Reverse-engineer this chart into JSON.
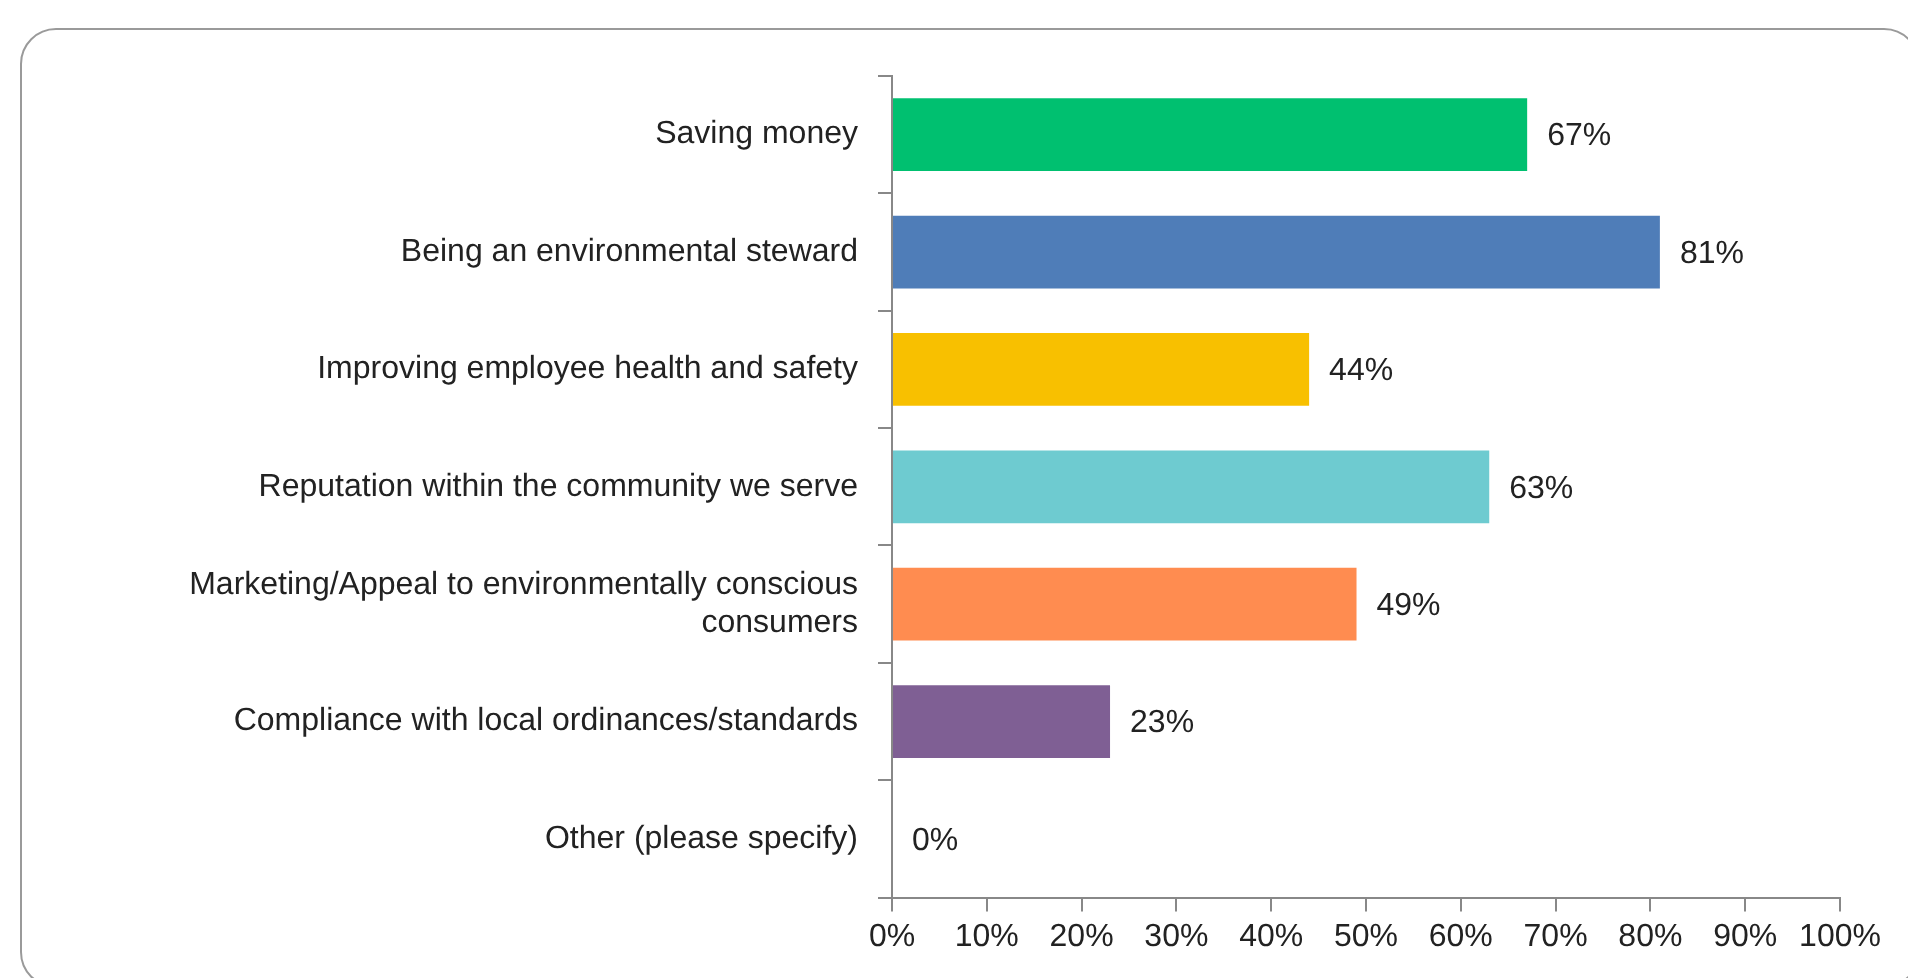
{
  "chart_data": {
    "type": "bar",
    "orientation": "horizontal",
    "categories": [
      "Saving money",
      "Being an environmental steward",
      "Improving employee health and safety",
      "Reputation within the community we serve",
      "Marketing/Appeal to environmentally conscious consumers",
      "Compliance with local ordinances/standards",
      "Other (please specify)"
    ],
    "values": [
      67,
      81,
      44,
      63,
      49,
      23,
      0
    ],
    "colors": [
      "#00c070",
      "#4f7db8",
      "#f8c000",
      "#6ecbd0",
      "#ff8c50",
      "#7f5f94",
      "#a0a0a0"
    ],
    "value_labels": [
      "67%",
      "81%",
      "44%",
      "63%",
      "49%",
      "23%",
      "0%"
    ],
    "xlim": [
      0,
      100
    ],
    "xticks": [
      {
        "value": 0,
        "label": "0%"
      },
      {
        "value": 10,
        "label": "10%"
      },
      {
        "value": 20,
        "label": "20%"
      },
      {
        "value": 30,
        "label": "30%"
      },
      {
        "value": 40,
        "label": "40%"
      },
      {
        "value": 50,
        "label": "50%"
      },
      {
        "value": 60,
        "label": "60%"
      },
      {
        "value": 70,
        "label": "70%"
      },
      {
        "value": 80,
        "label": "80%"
      },
      {
        "value": 90,
        "label": "90%"
      },
      {
        "value": 100,
        "label": "100%"
      }
    ],
    "grid": false,
    "legend": false
  }
}
